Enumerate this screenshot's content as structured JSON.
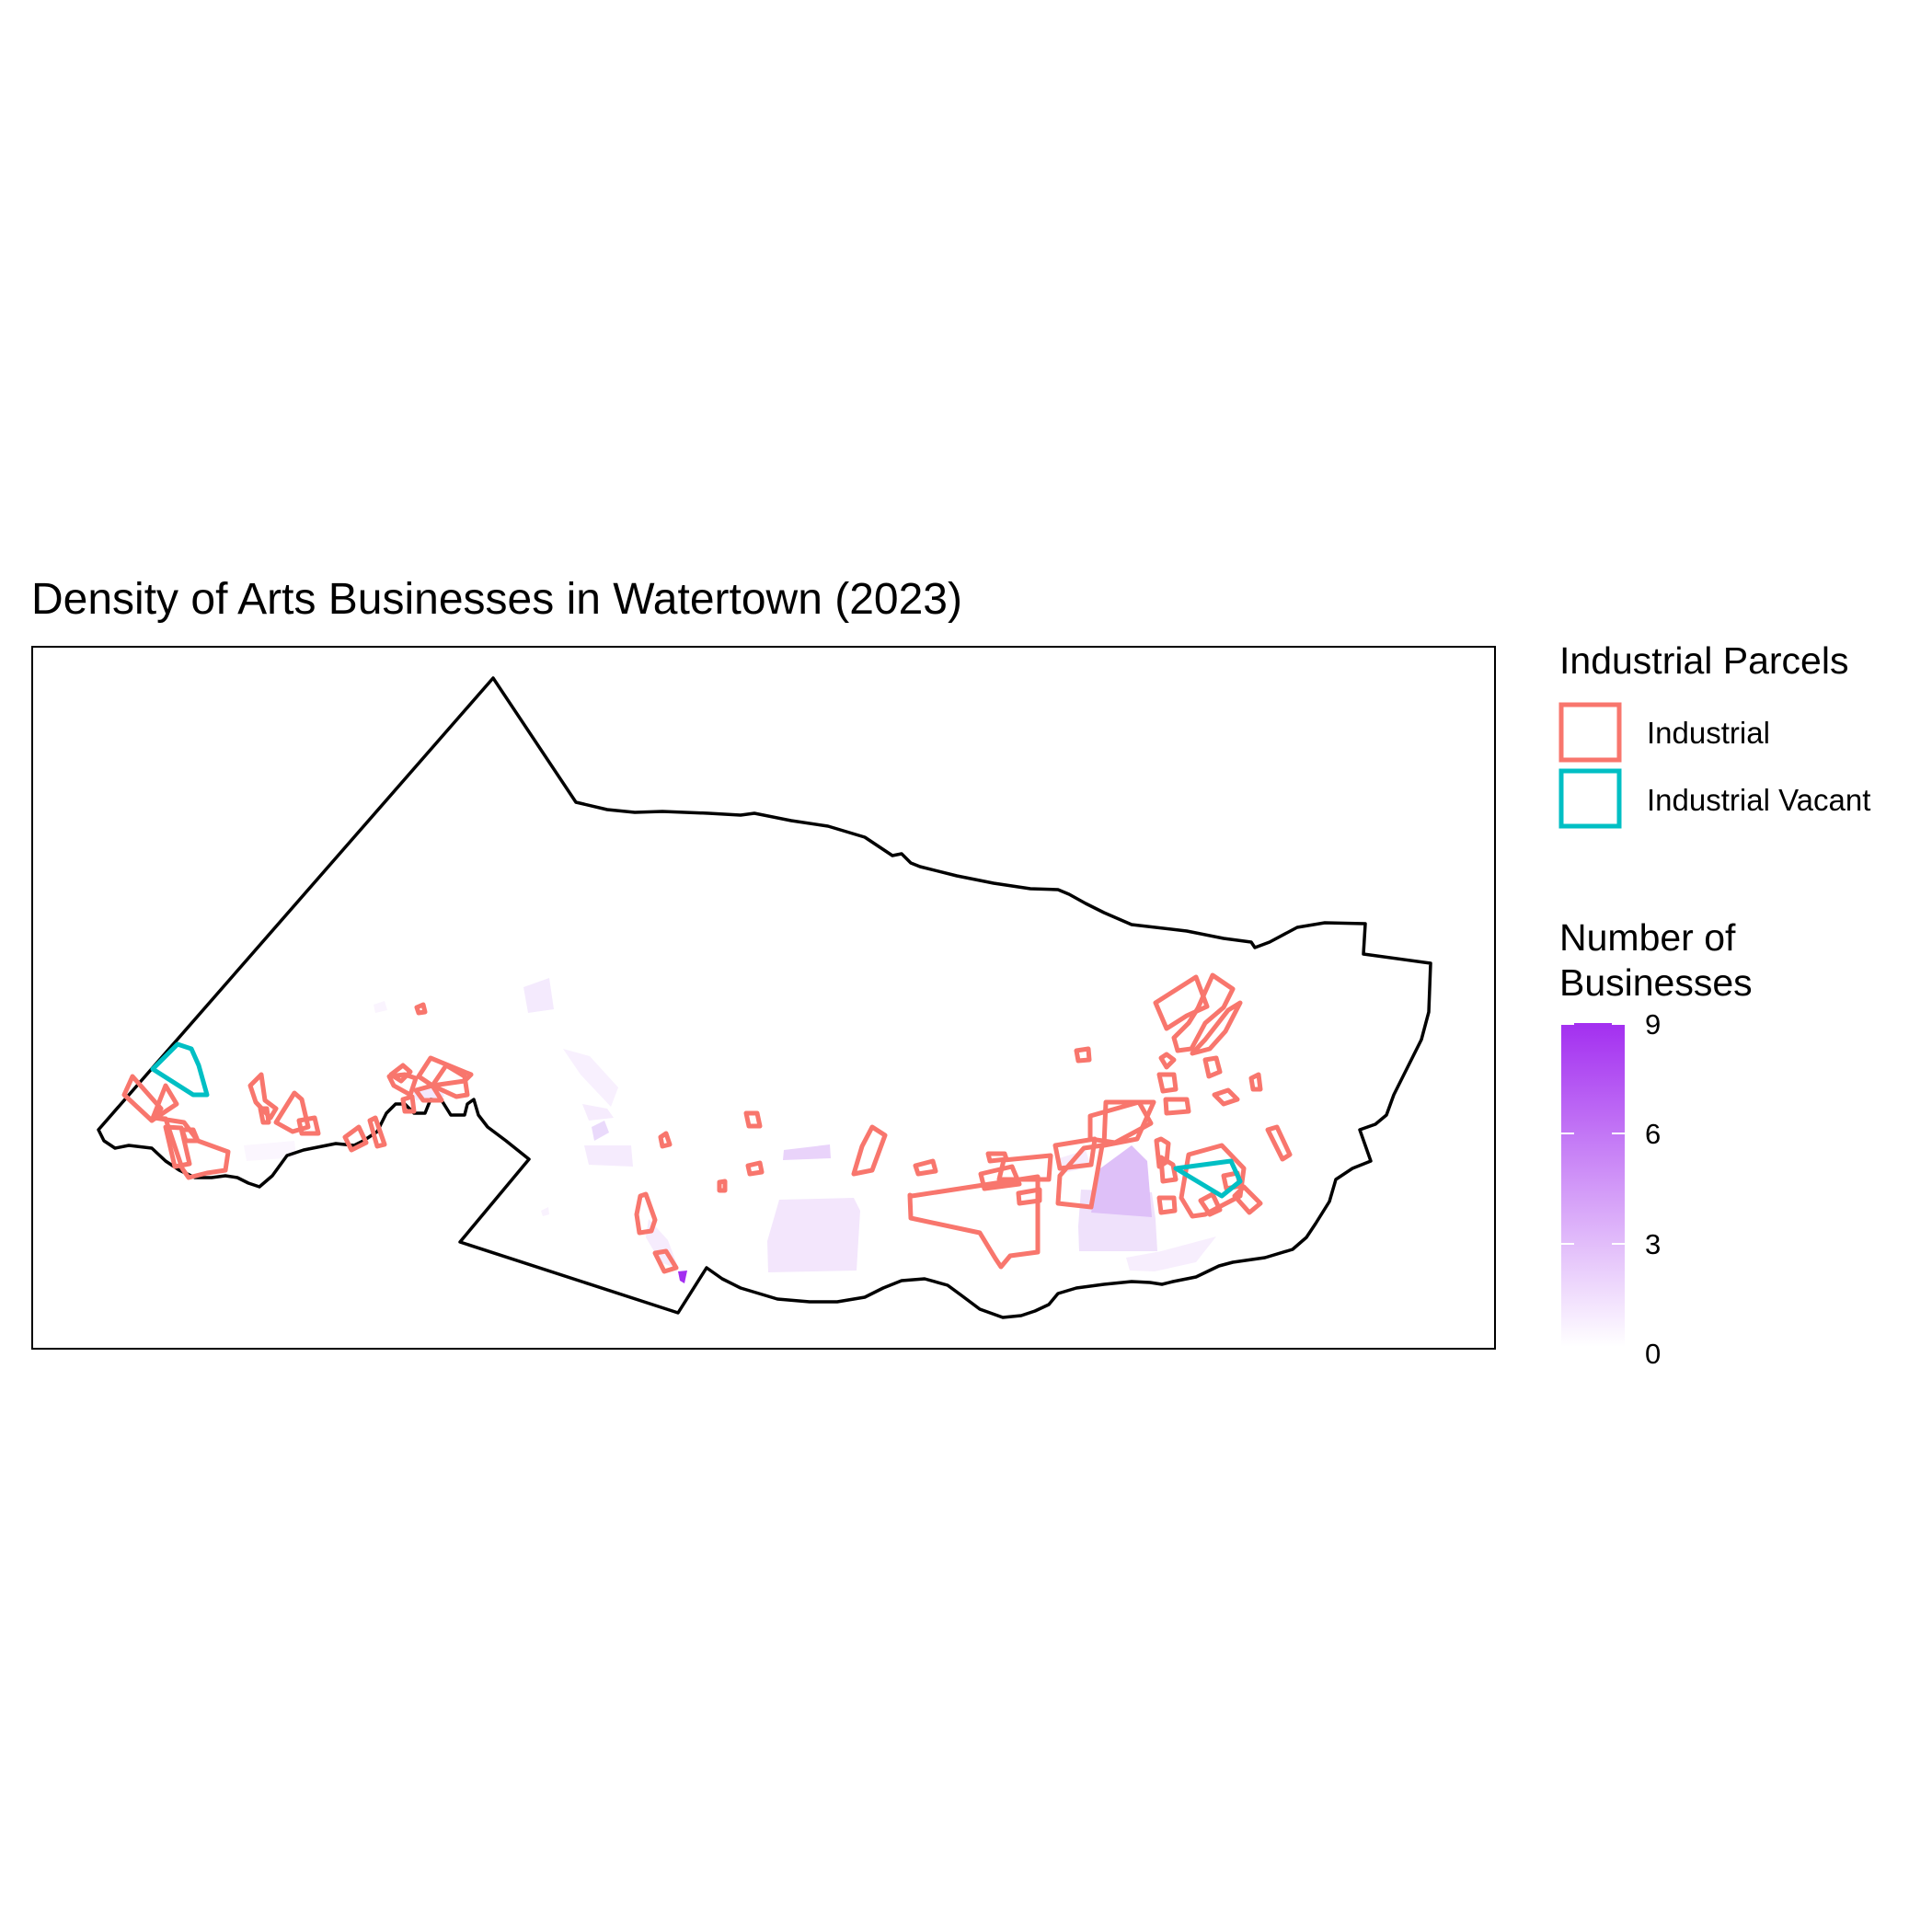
{
  "title": "Density of Arts Businesses in Watertown (2023)",
  "legend_parcels": {
    "title": "Industrial Parcels",
    "items": [
      {
        "label": "Industrial",
        "color": "#f8766d"
      },
      {
        "label": "Industrial Vacant",
        "color": "#00bfc4"
      }
    ]
  },
  "legend_density": {
    "title_lines": [
      "Number of",
      "Businesses"
    ],
    "min": 0,
    "max": 9,
    "ticks": [
      "0",
      "3",
      "6",
      "9"
    ],
    "color_low": "#ffffff",
    "color_high": "#a32ff0"
  },
  "colors": {
    "boundary": "#000000",
    "industrial": "#f8766d",
    "industrial_vacant": "#00bfc4"
  }
}
